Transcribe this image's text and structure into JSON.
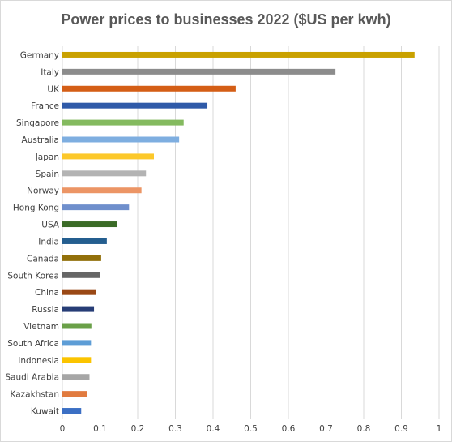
{
  "chart_data": {
    "type": "bar",
    "orientation": "horizontal",
    "title": "Power prices to businesses 2022 ($US per kwh)",
    "xlabel": "",
    "ylabel": "",
    "xlim": [
      0,
      1
    ],
    "x_ticks": [
      "0",
      "0.1",
      "0.2",
      "0.3",
      "0.4",
      "0.5",
      "0.6",
      "0.7",
      "0.8",
      "0.9",
      "1"
    ],
    "grid": "vertical",
    "legend": "none",
    "categories": [
      "Germany",
      "Italy",
      "UK",
      "France",
      "Singapore",
      "Australia",
      "Japan",
      "Spain",
      "Norway",
      "Hong Kong",
      "USA",
      "India",
      "Canada",
      "South Korea",
      "China",
      "Russia",
      "Vietnam",
      "South Africa",
      "Indonesia",
      "Saudi Arabia",
      "Kazakhstan",
      "Kuwait"
    ],
    "values": [
      0.935,
      0.725,
      0.46,
      0.385,
      0.322,
      0.31,
      0.243,
      0.222,
      0.21,
      0.177,
      0.146,
      0.118,
      0.103,
      0.101,
      0.089,
      0.084,
      0.077,
      0.076,
      0.076,
      0.072,
      0.065,
      0.05
    ],
    "colors": [
      "#c9a100",
      "#8c8c8c",
      "#d45e16",
      "#2f5aa8",
      "#84ba5f",
      "#7eaee0",
      "#fcc82a",
      "#b3b3b3",
      "#ec9565",
      "#6f8fcc",
      "#3b6b27",
      "#245e8f",
      "#92700a",
      "#666666",
      "#9a4815",
      "#273d76",
      "#6aa048",
      "#5d9dd6",
      "#fbc400",
      "#a6a6a6",
      "#e17b3f",
      "#3b6fc4"
    ]
  }
}
